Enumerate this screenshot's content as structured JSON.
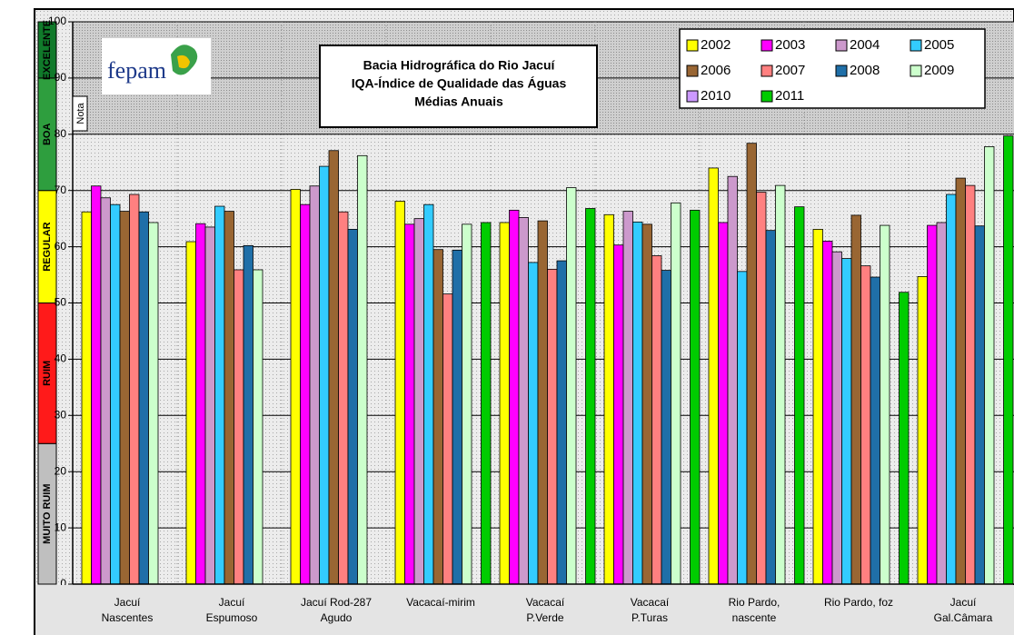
{
  "chart_data": {
    "type": "bar",
    "title": [
      "Bacia Hidrográfica do Rio Jacuí",
      "IQA-Índice de Qualidade das Águas",
      "Médias Anuais"
    ],
    "y_label": "Nota",
    "logo": "fepam",
    "categories": [
      [
        "Jacuí",
        "Nascentes"
      ],
      [
        "Jacuí",
        "Espumoso"
      ],
      [
        "Jacuí Rod-287",
        "Agudo"
      ],
      [
        "Vacacaí-mirim"
      ],
      [
        "Vacacaí",
        "P.Verde"
      ],
      [
        "Vacacaí",
        "P.Turas"
      ],
      [
        "Rio Pardo,",
        "nascente"
      ],
      [
        "Rio Pardo, foz"
      ],
      [
        "Jacuí",
        "Gal.Câmara"
      ]
    ],
    "series": [
      {
        "name": "2002",
        "color": "#ffff00",
        "values": [
          66.2,
          60.9,
          70.2,
          68.1,
          64.3,
          65.7,
          74.0,
          63.1,
          54.7
        ]
      },
      {
        "name": "2003",
        "color": "#ff00ff",
        "values": [
          70.8,
          64.1,
          67.5,
          64.0,
          66.5,
          60.3,
          64.3,
          61.0,
          63.8
        ]
      },
      {
        "name": "2004",
        "color": "#cc99cc",
        "values": [
          68.7,
          63.5,
          70.8,
          65.0,
          65.2,
          66.3,
          72.5,
          59.1,
          64.3
        ]
      },
      {
        "name": "2005",
        "color": "#33ccff",
        "values": [
          67.5,
          67.2,
          74.3,
          67.5,
          57.2,
          64.4,
          55.6,
          57.9,
          69.3
        ]
      },
      {
        "name": "2006",
        "color": "#996633",
        "values": [
          66.3,
          66.3,
          77.1,
          59.5,
          64.6,
          64.0,
          78.4,
          65.6,
          72.2
        ]
      },
      {
        "name": "2007",
        "color": "#ff8080",
        "values": [
          69.3,
          55.9,
          66.2,
          51.6,
          56.0,
          58.4,
          69.7,
          56.6,
          70.9
        ]
      },
      {
        "name": "2008",
        "color": "#1f6fa8",
        "values": [
          66.2,
          60.2,
          63.1,
          59.4,
          57.5,
          55.8,
          62.9,
          54.6,
          63.7
        ]
      },
      {
        "name": "2009",
        "color": "#ccffcc",
        "values": [
          64.3,
          55.9,
          76.2,
          64.0,
          70.5,
          67.8,
          70.9,
          63.8,
          77.8
        ]
      },
      {
        "name": "2010",
        "color": "#cc99ff",
        "values": [
          null,
          null,
          null,
          null,
          null,
          null,
          null,
          null,
          null
        ]
      },
      {
        "name": "2011",
        "color": "#00cc00",
        "values": [
          null,
          null,
          null,
          64.3,
          66.8,
          66.5,
          67.1,
          51.9,
          79.7
        ]
      }
    ],
    "bands": [
      {
        "label": "MUITO RUIM",
        "from": 0,
        "to": 25,
        "color": "#bfbfbf"
      },
      {
        "label": "RUIM",
        "from": 25,
        "to": 50,
        "color": "#ff1a1a"
      },
      {
        "label": "REGULAR",
        "from": 50,
        "to": 70,
        "color": "#ffff00"
      },
      {
        "label": "BOA",
        "from": 70,
        "to": 90,
        "color": "#2e9e3e"
      },
      {
        "label": "EXCELENTE",
        "from": 90,
        "to": 100,
        "color": "#107a2a"
      }
    ],
    "ylim": [
      0,
      100
    ],
    "yticks": [
      0,
      10,
      20,
      30,
      40,
      50,
      60,
      70,
      80,
      90,
      100
    ],
    "grid": true
  }
}
